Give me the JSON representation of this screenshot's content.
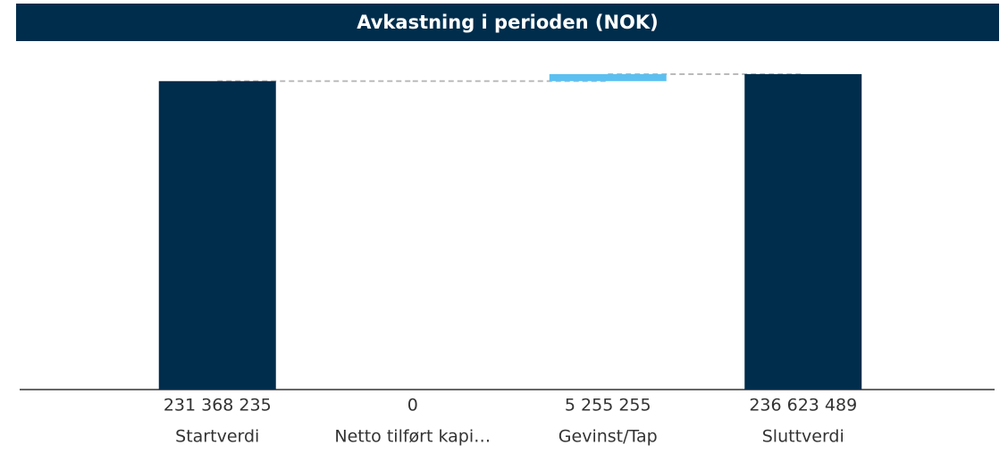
{
  "chart_data": {
    "type": "waterfall",
    "title": "Avkastning i perioden (NOK)",
    "categories": [
      "Startverdi",
      "Netto tilført kapi…",
      "Gevinst/Tap",
      "Sluttverdi"
    ],
    "values": [
      231368235,
      0,
      5255255,
      236623489
    ],
    "value_labels": [
      "231 368 235",
      "0",
      "5 255 255",
      "236 623 489"
    ],
    "measure": [
      "absolute",
      "relative",
      "relative",
      "total"
    ],
    "colors": [
      "#002d4c",
      "#5bc0f0",
      "#5bc0f0",
      "#002d4c"
    ],
    "ylim": [
      0,
      250000000
    ]
  }
}
